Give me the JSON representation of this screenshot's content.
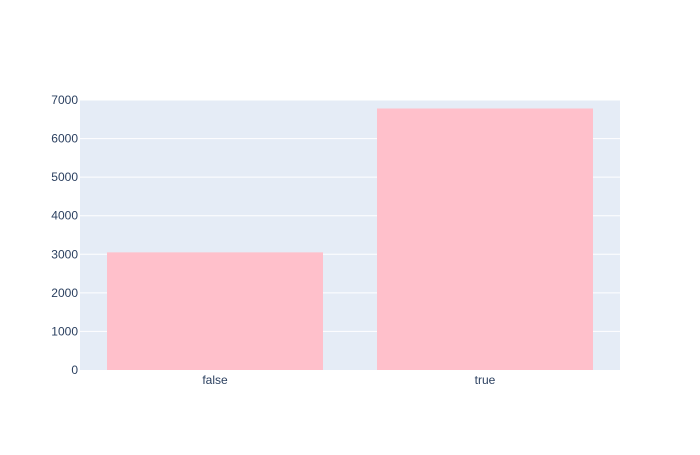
{
  "chart_data": {
    "type": "bar",
    "categories": [
      "false",
      "true"
    ],
    "values": [
      3050,
      6780
    ],
    "ylim": [
      0,
      7000
    ],
    "yticks": [
      0,
      1000,
      2000,
      3000,
      4000,
      5000,
      6000,
      7000
    ],
    "grid": true,
    "legend": "none",
    "colors": {
      "bar": "#ffc0cb",
      "plot_background": "#e5ecf6",
      "gridline": "#ffffff",
      "text": "#2a3f5f"
    }
  }
}
